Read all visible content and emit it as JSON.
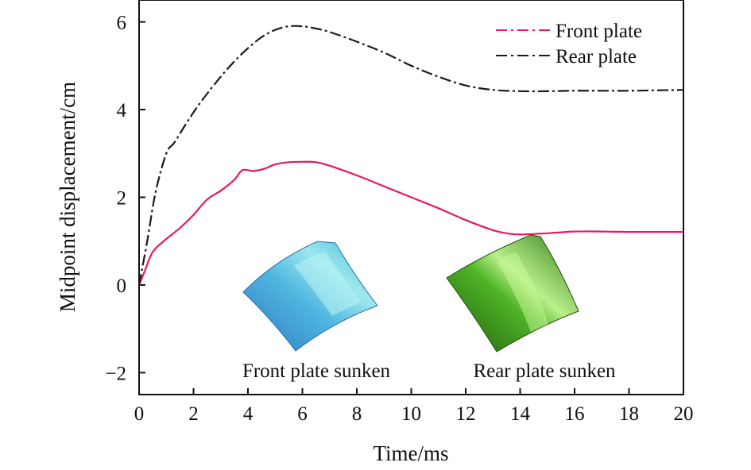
{
  "chart_data": {
    "type": "line",
    "xlabel": "Time/ms",
    "ylabel": "Midpoint displacement/cm",
    "xlim": [
      0,
      20
    ],
    "ylim": [
      -2.5,
      6.5
    ],
    "xticks": [
      0,
      2,
      4,
      6,
      8,
      10,
      12,
      14,
      16,
      18,
      20
    ],
    "yticks": [
      -2,
      0,
      2,
      4,
      6
    ],
    "x_tick_labels": [
      "0",
      "2",
      "4",
      "6",
      "8",
      "10",
      "12",
      "14",
      "16",
      "18",
      "20"
    ],
    "y_tick_labels": [
      "−2",
      "0",
      "2",
      "4",
      "6"
    ],
    "grid": false,
    "legend_position": "top-right",
    "series": [
      {
        "name": "Front plate",
        "color": "#e8195a",
        "line_style": "solid",
        "legend_style": "dash-dot",
        "x": [
          0,
          0.2,
          0.5,
          1.0,
          1.5,
          2.0,
          2.5,
          3.0,
          3.5,
          3.8,
          4.2,
          4.6,
          5.0,
          5.5,
          6.0,
          6.5,
          7.0,
          8.0,
          9.0,
          10.0,
          11.0,
          12.0,
          13.0,
          13.5,
          14.0,
          15.0,
          16.0,
          17.0,
          18.0,
          19.0,
          20.0
        ],
        "y": [
          0,
          0.3,
          0.75,
          1.05,
          1.3,
          1.6,
          1.95,
          2.15,
          2.4,
          2.62,
          2.6,
          2.65,
          2.75,
          2.8,
          2.81,
          2.8,
          2.72,
          2.5,
          2.25,
          2.0,
          1.75,
          1.48,
          1.25,
          1.18,
          1.15,
          1.18,
          1.22,
          1.22,
          1.21,
          1.21,
          1.21
        ]
      },
      {
        "name": "Rear plate",
        "color": "#1a1a1a",
        "line_style": "dash-dot",
        "legend_style": "dash-dot",
        "x": [
          0,
          0.3,
          0.6,
          1.0,
          1.3,
          1.8,
          2.3,
          3.0,
          3.5,
          4.0,
          4.5,
          5.0,
          5.5,
          6.0,
          6.5,
          7.0,
          8.0,
          9.0,
          10.0,
          11.0,
          12.0,
          13.0,
          14.0,
          15.0,
          16.0,
          17.0,
          18.0,
          19.0,
          20.0
        ],
        "y": [
          0,
          1.0,
          2.1,
          3.0,
          3.25,
          3.75,
          4.2,
          4.75,
          5.1,
          5.4,
          5.65,
          5.82,
          5.9,
          5.9,
          5.85,
          5.77,
          5.55,
          5.3,
          5.0,
          4.75,
          4.55,
          4.45,
          4.42,
          4.42,
          4.43,
          4.43,
          4.43,
          4.44,
          4.45
        ]
      }
    ],
    "insets": [
      {
        "caption": "Front plate sunken",
        "color": "#3a9ad0"
      },
      {
        "caption": "Rear plate sunken",
        "color": "#3e9a1e"
      }
    ]
  }
}
